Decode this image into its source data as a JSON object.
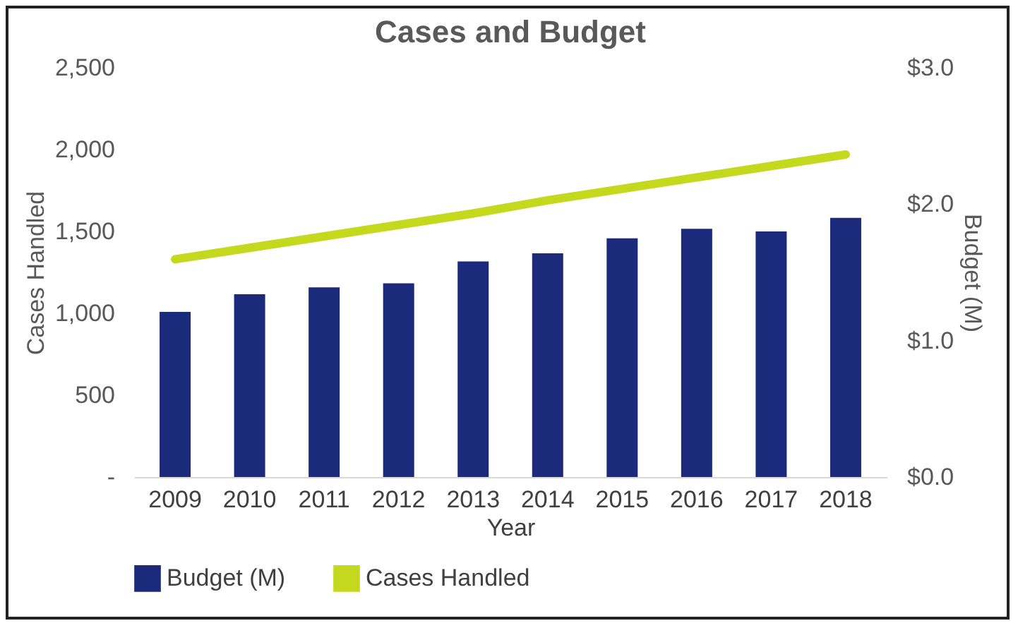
{
  "chart_data": {
    "type": "bar",
    "title": "Cases and Budget",
    "xlabel": "Year",
    "ylabel": "Cases Handled",
    "y2label": "Budget (M)",
    "categories": [
      "2009",
      "2010",
      "2011",
      "2012",
      "2013",
      "2014",
      "2015",
      "2016",
      "2017",
      "2018"
    ],
    "series": [
      {
        "name": "Budget (M)",
        "axis": "y2",
        "color": "#1b2a7b",
        "values": [
          1.21,
          1.34,
          1.39,
          1.42,
          1.58,
          1.64,
          1.75,
          1.82,
          1.8,
          1.9
        ]
      },
      {
        "name": "Cases Handled",
        "type": "line",
        "axis": "y",
        "color": "#c4d81e",
        "values": [
          1330,
          1400,
          1470,
          1540,
          1610,
          1690,
          1760,
          1830,
          1900,
          1970
        ]
      }
    ],
    "ylim": [
      0,
      2500
    ],
    "yticks": [
      {
        "value": 0,
        "label": "-"
      },
      {
        "value": 500,
        "label": "500"
      },
      {
        "value": 1000,
        "label": "1,000"
      },
      {
        "value": 1500,
        "label": "1,500"
      },
      {
        "value": 2000,
        "label": "2,000"
      },
      {
        "value": 2500,
        "label": "2,500"
      }
    ],
    "y2lim": [
      0,
      3
    ],
    "y2ticks": [
      {
        "value": 0,
        "label": "$0.0"
      },
      {
        "value": 1,
        "label": "$1.0"
      },
      {
        "value": 2,
        "label": "$2.0"
      },
      {
        "value": 3,
        "label": "$3.0"
      }
    ],
    "legend": "bottom",
    "grid": false
  }
}
